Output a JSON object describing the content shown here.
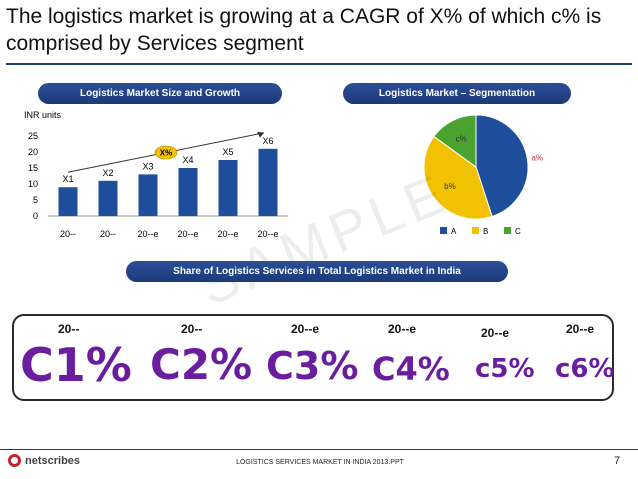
{
  "slide": {
    "title": "The logistics market is growing at a CAGR of X% of which c% is comprised by Services segment",
    "watermark": "SAMPLE"
  },
  "pills": {
    "left": "Logistics Market Size and Growth",
    "right": "Logistics Market – Segmentation",
    "share": "Share of Logistics Services in Total Logistics Market in India"
  },
  "colors": {
    "bar": "#1f4e9c",
    "pie_a": "#1f4e9c",
    "pie_b": "#f2c200",
    "pie_c": "#4aa32f",
    "cagr_badge": "#f2c200",
    "big_text": "#6a1e9e"
  },
  "chart_data": [
    {
      "type": "bar",
      "title": "Logistics Market Size and Growth",
      "unit_label": "INR units",
      "categories": [
        "20--",
        "20--",
        "20--e",
        "20--e",
        "20--e",
        "20--e"
      ],
      "values": [
        9,
        11,
        13,
        15,
        17.5,
        21
      ],
      "data_labels": [
        "X1",
        "X2",
        "X3",
        "X4",
        "X5",
        "X6"
      ],
      "cagr_label": "X%",
      "ylim": [
        0,
        25
      ],
      "yticks": [
        0,
        5,
        10,
        15,
        20,
        25
      ],
      "xlabel": "",
      "ylabel": ""
    },
    {
      "type": "pie",
      "title": "Logistics Market – Segmentation",
      "slices": [
        {
          "name": "A",
          "label": "a%",
          "value": 45
        },
        {
          "name": "B",
          "label": "b%",
          "value": 40
        },
        {
          "name": "C",
          "label": "c%",
          "value": 15
        }
      ],
      "legend": [
        "A",
        "B",
        "C"
      ]
    }
  ],
  "share": {
    "items": [
      {
        "year": "20--",
        "value": "C1%"
      },
      {
        "year": "20--",
        "value": "C2%"
      },
      {
        "year": "20--e",
        "value": "C3%"
      },
      {
        "year": "20--e",
        "value": "C4%"
      },
      {
        "year": "20--e",
        "value": "c5%"
      },
      {
        "year": "20--e",
        "value": "c6%"
      }
    ]
  },
  "footer": {
    "brand": "netscribes",
    "text": "LOGISTICS SERVICES MARKET IN INDIA 2013.PPT",
    "page": "7"
  }
}
